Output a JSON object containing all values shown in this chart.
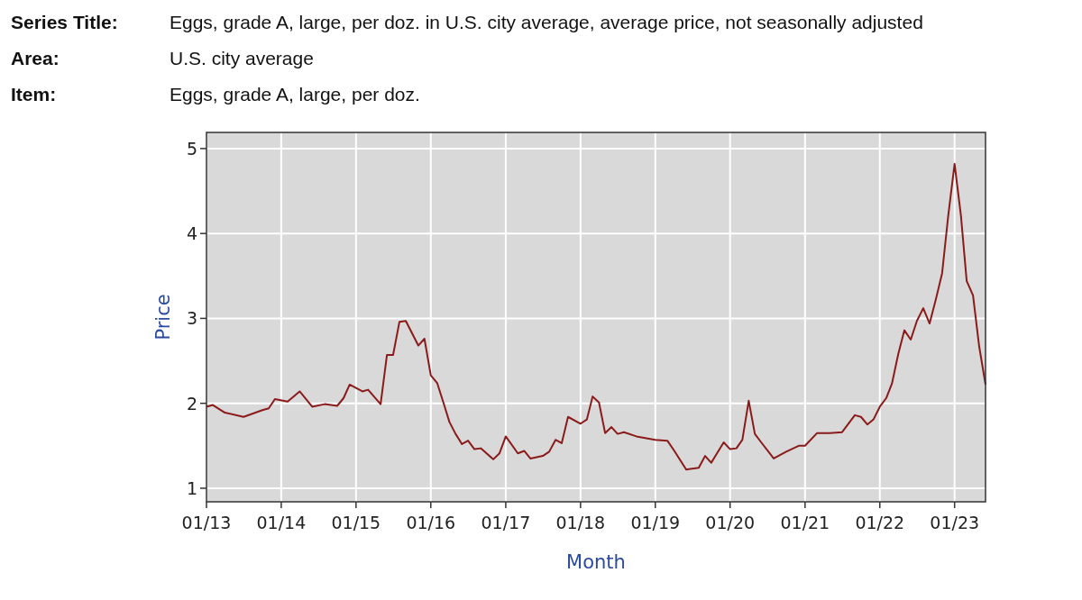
{
  "chart_data": {
    "type": "line",
    "xlabel": "Month",
    "ylabel": "Price",
    "annotations": [
      "Series Title:",
      "Eggs, grade A, large, per doz. in U.S. city average, average price, not seasonally adjusted",
      "Area:",
      "U.S. city average",
      "Item:",
      "Eggs, grade A, large, per doz."
    ],
    "x": [
      "2013-01",
      "2013-02",
      "2013-04",
      "2013-07",
      "2013-10",
      "2013-11",
      "2013-12",
      "2014-02",
      "2014-04",
      "2014-06",
      "2014-08",
      "2014-10",
      "2014-11",
      "2014-12",
      "2015-02",
      "2015-03",
      "2015-05",
      "2015-06",
      "2015-07",
      "2015-08",
      "2015-09",
      "2015-11",
      "2015-12",
      "2016-01",
      "2016-02",
      "2016-03",
      "2016-04",
      "2016-05",
      "2016-06",
      "2016-07",
      "2016-08",
      "2016-09",
      "2016-11",
      "2016-12",
      "2017-01",
      "2017-03",
      "2017-04",
      "2017-05",
      "2017-07",
      "2017-08",
      "2017-09",
      "2017-10",
      "2017-11",
      "2018-01",
      "2018-02",
      "2018-03",
      "2018-04",
      "2018-05",
      "2018-06",
      "2018-07",
      "2018-08",
      "2018-10",
      "2019-01",
      "2019-03",
      "2019-04",
      "2019-06",
      "2019-08",
      "2019-09",
      "2019-10",
      "2019-12",
      "2020-01",
      "2020-02",
      "2020-03",
      "2020-04",
      "2020-05",
      "2020-06",
      "2020-08",
      "2020-10",
      "2020-12",
      "2021-01",
      "2021-03",
      "2021-05",
      "2021-07",
      "2021-09",
      "2021-10",
      "2021-11",
      "2021-12",
      "2022-01",
      "2022-02",
      "2022-03",
      "2022-04",
      "2022-05",
      "2022-06",
      "2022-07",
      "2022-08",
      "2022-09",
      "2022-10",
      "2022-11",
      "2022-12",
      "2023-01",
      "2023-02",
      "2023-03",
      "2023-04",
      "2023-05",
      "2023-06"
    ],
    "series": [
      {
        "color": "#8b1a1a",
        "values": [
          1.96,
          1.98,
          1.89,
          1.84,
          1.92,
          1.94,
          2.05,
          2.02,
          2.14,
          1.96,
          1.99,
          1.97,
          2.06,
          2.22,
          2.14,
          2.16,
          1.99,
          2.57,
          2.57,
          2.96,
          2.97,
          2.68,
          2.76,
          2.33,
          2.24,
          2.02,
          1.78,
          1.64,
          1.52,
          1.56,
          1.46,
          1.47,
          1.34,
          1.41,
          1.61,
          1.41,
          1.44,
          1.35,
          1.38,
          1.43,
          1.57,
          1.53,
          1.84,
          1.76,
          1.81,
          2.08,
          2.01,
          1.65,
          1.72,
          1.64,
          1.66,
          1.61,
          1.57,
          1.56,
          1.45,
          1.22,
          1.24,
          1.38,
          1.3,
          1.54,
          1.46,
          1.47,
          1.57,
          2.03,
          1.64,
          1.54,
          1.35,
          1.43,
          1.5,
          1.5,
          1.65,
          1.65,
          1.66,
          1.86,
          1.84,
          1.75,
          1.81,
          1.96,
          2.06,
          2.23,
          2.58,
          2.86,
          2.75,
          2.97,
          3.12,
          2.94,
          3.22,
          3.53,
          4.21,
          4.82,
          4.21,
          3.44,
          3.27,
          2.67,
          2.22
        ]
      }
    ],
    "xlim": [
      "2013-01",
      "2023-06"
    ],
    "xticks": [
      {
        "value": "2013-01",
        "label": "01/13"
      },
      {
        "value": "2014-01",
        "label": "01/14"
      },
      {
        "value": "2015-01",
        "label": "01/15"
      },
      {
        "value": "2016-01",
        "label": "01/16"
      },
      {
        "value": "2017-01",
        "label": "01/17"
      },
      {
        "value": "2018-01",
        "label": "01/18"
      },
      {
        "value": "2019-01",
        "label": "01/19"
      },
      {
        "value": "2020-01",
        "label": "01/20"
      },
      {
        "value": "2021-01",
        "label": "01/21"
      },
      {
        "value": "2022-01",
        "label": "01/22"
      },
      {
        "value": "2023-01",
        "label": "01/23"
      }
    ],
    "ylim": [
      0.84,
      5.19
    ],
    "yticks": [
      1,
      2,
      3,
      4,
      5
    ],
    "grid": true
  }
}
